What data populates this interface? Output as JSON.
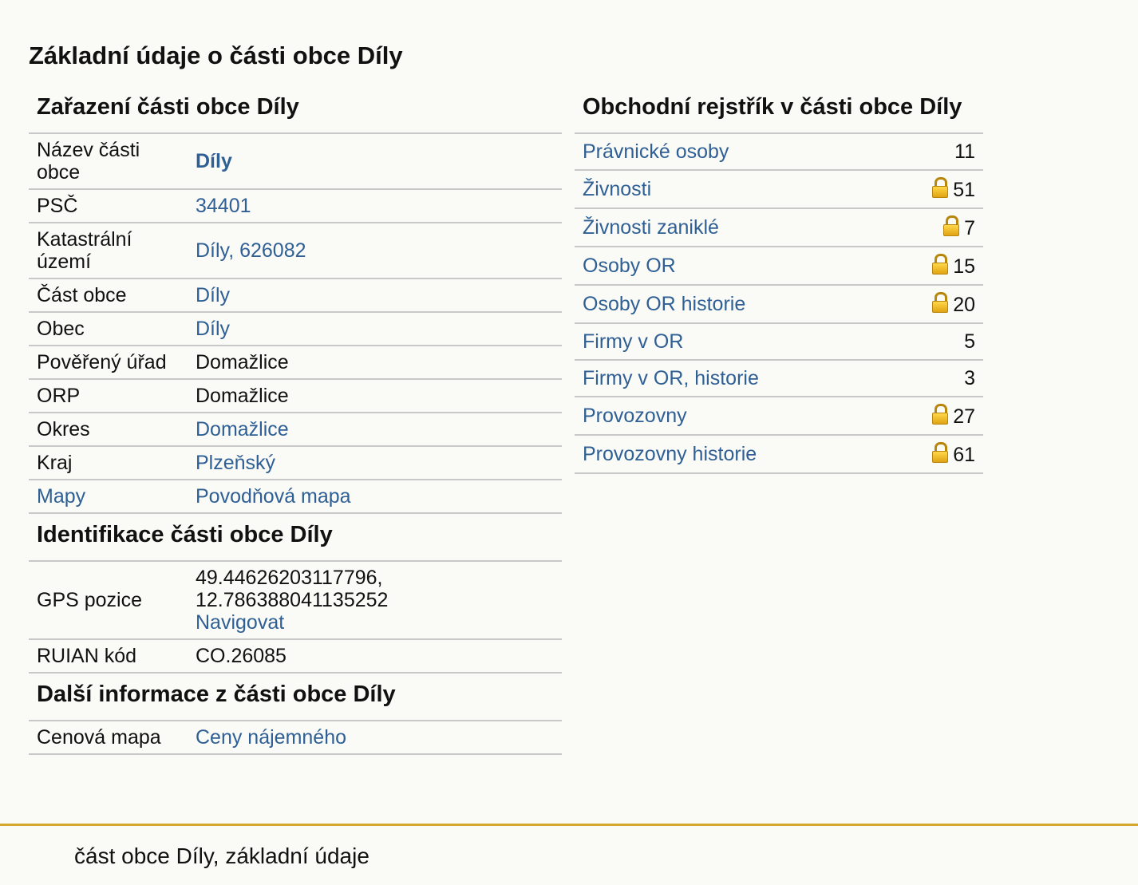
{
  "page_title": "Základní údaje o části obce Díly",
  "zarazeni": {
    "heading": "Zařazení části obce Díly",
    "rows": [
      {
        "label": "Název části obce",
        "value": "Díly",
        "link": true,
        "bold": true
      },
      {
        "label": "PSČ",
        "value": "34401",
        "link": true
      },
      {
        "label": "Katastrální území",
        "value": "Díly, 626082",
        "link": true
      },
      {
        "label": "Část obce",
        "value": "Díly",
        "link": true
      },
      {
        "label": "Obec",
        "value": "Díly",
        "link": true
      },
      {
        "label": "Pověřený úřad",
        "value": "Domažlice",
        "link": false
      },
      {
        "label": "ORP",
        "value": "Domažlice",
        "link": false
      },
      {
        "label": "Okres",
        "value": "Domažlice",
        "link": true
      },
      {
        "label": "Kraj",
        "value": "Plzeňský",
        "link": true
      },
      {
        "label": "Mapy",
        "value": "Povodňová mapa",
        "link": true,
        "label_link": true
      }
    ]
  },
  "identifikace": {
    "heading": "Identifikace části obce Díly",
    "gps_label": "GPS pozice",
    "gps_line1": "49.44626203117796,",
    "gps_line2": "12.786388041135252",
    "navigate_label": "Navigovat",
    "ruian_label": "RUIAN kód",
    "ruian_value": "CO.26085"
  },
  "dalsi": {
    "heading": "Další informace z části obce Díly",
    "cenova_label": "Cenová mapa",
    "cenova_value": "Ceny nájemného"
  },
  "obchodni": {
    "heading": "Obchodní rejstřík v části obce Díly",
    "rows": [
      {
        "label": "Právnické osoby",
        "count": "11",
        "locked": false
      },
      {
        "label": "Živnosti",
        "count": "51",
        "locked": true
      },
      {
        "label": "Živnosti zaniklé",
        "count": "7",
        "locked": true
      },
      {
        "label": "Osoby OR",
        "count": "15",
        "locked": true
      },
      {
        "label": "Osoby OR historie",
        "count": "20",
        "locked": true
      },
      {
        "label": "Firmy v OR",
        "count": "5",
        "locked": false
      },
      {
        "label": "Firmy v OR, historie",
        "count": "3",
        "locked": false
      },
      {
        "label": "Provozovny",
        "count": "27",
        "locked": true
      },
      {
        "label": "Provozovny historie",
        "count": "61",
        "locked": true
      }
    ]
  },
  "footer": {
    "text": "část obce Díly, základní údaje"
  }
}
